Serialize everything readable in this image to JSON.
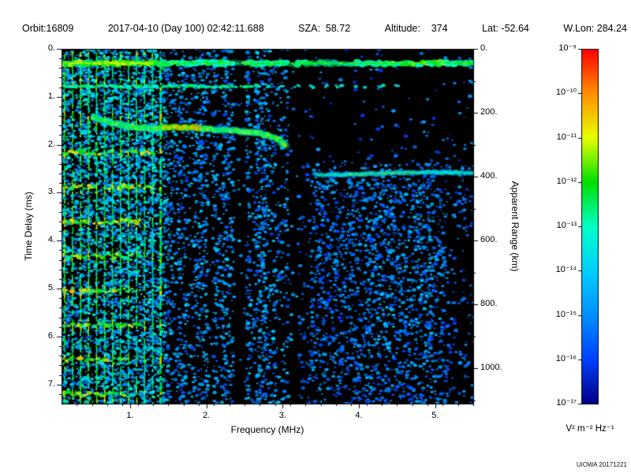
{
  "header": {
    "items": [
      "Orbit:16809",
      "2017-04-10 (Day 100) 02:42:11.688",
      "SZA:  58.72",
      "Altitude:    374",
      "Lat: -52.64",
      "W.Lon: 284.24"
    ]
  },
  "credit": "UIOWA 20171221",
  "chart_data": {
    "type": "heatmap",
    "xlabel": "Frequency (MHz)",
    "ylabel_left": "Time Delay (ms)",
    "ylabel_right": "Apparent Range (km)",
    "x_range_mhz": [
      0.1,
      5.5
    ],
    "y_range_ms": [
      0.0,
      7.4
    ],
    "km_per_ms": 150,
    "x_ticks": {
      "values": [
        1,
        2,
        3,
        4,
        5
      ],
      "labels": [
        "1.",
        "2.",
        "3.",
        "4.",
        "5."
      ],
      "minor_step": 0.2
    },
    "y_ticks": {
      "values": [
        0,
        1,
        2,
        3,
        4,
        5,
        6,
        7
      ],
      "labels": [
        "0.",
        "1.",
        "2.",
        "3.",
        "4.",
        "5.",
        "6.",
        "7."
      ],
      "minor_step": 0.2
    },
    "right_ticks": {
      "values_km": [
        0,
        200,
        400,
        600,
        800,
        1000
      ],
      "labels": [
        "0.",
        "200.",
        "400.",
        "600.",
        "800.",
        "1000."
      ],
      "minor_step_km": 100
    },
    "colorbar": {
      "units": "V² m⁻² Hz⁻¹",
      "labels": [
        "10⁻⁹",
        "10⁻¹⁰",
        "10⁻¹¹",
        "10⁻¹²",
        "10⁻¹³",
        "10⁻¹⁴",
        "10⁻¹⁵",
        "10⁻¹⁶",
        "10⁻¹⁷"
      ],
      "exponents": [
        -9,
        -10,
        -11,
        -12,
        -13,
        -14,
        -15,
        -16,
        -17
      ],
      "stops": [
        {
          "p": 0.0,
          "c": "#000084"
        },
        {
          "p": 0.125,
          "c": "#0040ff"
        },
        {
          "p": 0.25,
          "c": "#0090ff"
        },
        {
          "p": 0.375,
          "c": "#00d0ff"
        },
        {
          "p": 0.5,
          "c": "#00ffc8"
        },
        {
          "p": 0.625,
          "c": "#00e000"
        },
        {
          "p": 0.75,
          "c": "#e8ff00"
        },
        {
          "p": 0.875,
          "c": "#ff9000"
        },
        {
          "p": 1.0,
          "c": "#ff0000"
        }
      ]
    },
    "features": {
      "noise_seed": 20171221,
      "background": "#000000",
      "surface_band": {
        "delay_ms": 0.3,
        "f_start": 0.1,
        "f_end": 5.5,
        "value": 0.55
      },
      "second_trace": {
        "delay_ms": 0.78,
        "f_solid_end": 2.7,
        "f_dashed_end": 4.6,
        "value": 0.42
      },
      "plasma_harmonics": {
        "f_start": 0.14,
        "spacing_mhz": 0.105,
        "f_end": 1.41,
        "value": 0.55
      },
      "cyclotron_echoes": {
        "period_ms": 0.72,
        "first": 3,
        "last": 10,
        "f_end": 1.2,
        "value": 0.6
      },
      "ionosphere_trace": {
        "points_mhz_ms": [
          [
            0.52,
            1.42
          ],
          [
            0.7,
            1.52
          ],
          [
            0.9,
            1.6
          ],
          [
            1.1,
            1.64
          ],
          [
            1.35,
            1.66
          ],
          [
            1.6,
            1.63
          ],
          [
            1.85,
            1.65
          ],
          [
            2.1,
            1.68
          ],
          [
            2.35,
            1.7
          ],
          [
            2.6,
            1.74
          ],
          [
            2.8,
            1.8
          ],
          [
            2.95,
            1.9
          ],
          [
            3.05,
            2.05
          ]
        ],
        "value": 0.65,
        "bright_f": [
          1.45,
          1.95
        ],
        "bright_value": 0.82
      },
      "ground_echo": {
        "delay_ms": 2.6,
        "f_start": 3.42,
        "f_end": 5.5,
        "value": 0.5,
        "bright_f": [
          3.85,
          4.75
        ]
      },
      "quiet_bands_mhz": [
        [
          2.35,
          2.49
        ],
        [
          3.06,
          3.18
        ]
      ],
      "noise_regions": [
        {
          "f": [
            0.1,
            1.45
          ],
          "d": [
            0,
            7.4
          ],
          "density": 0.42,
          "value": [
            0.18,
            0.48
          ]
        },
        {
          "f": [
            1.45,
            3.2
          ],
          "d": [
            0,
            7.4
          ],
          "density": 0.3,
          "value": [
            0.13,
            0.38
          ]
        },
        {
          "f": [
            3.2,
            5.5
          ],
          "d": [
            0,
            2.3
          ],
          "density": 0.035,
          "value": [
            0.1,
            0.3
          ]
        },
        {
          "f": [
            3.2,
            5.5
          ],
          "d": [
            2.3,
            7.4
          ],
          "density": 0.1,
          "value": [
            0.1,
            0.3
          ]
        },
        {
          "f": [
            3.35,
            5.15
          ],
          "d": [
            2.35,
            7.4
          ],
          "density": 0.26,
          "value": [
            0.12,
            0.32
          ]
        },
        {
          "f": [
            4.05,
            4.95
          ],
          "d": [
            2.7,
            6.4
          ],
          "density": 0.34,
          "value": [
            0.12,
            0.37
          ]
        }
      ]
    }
  }
}
